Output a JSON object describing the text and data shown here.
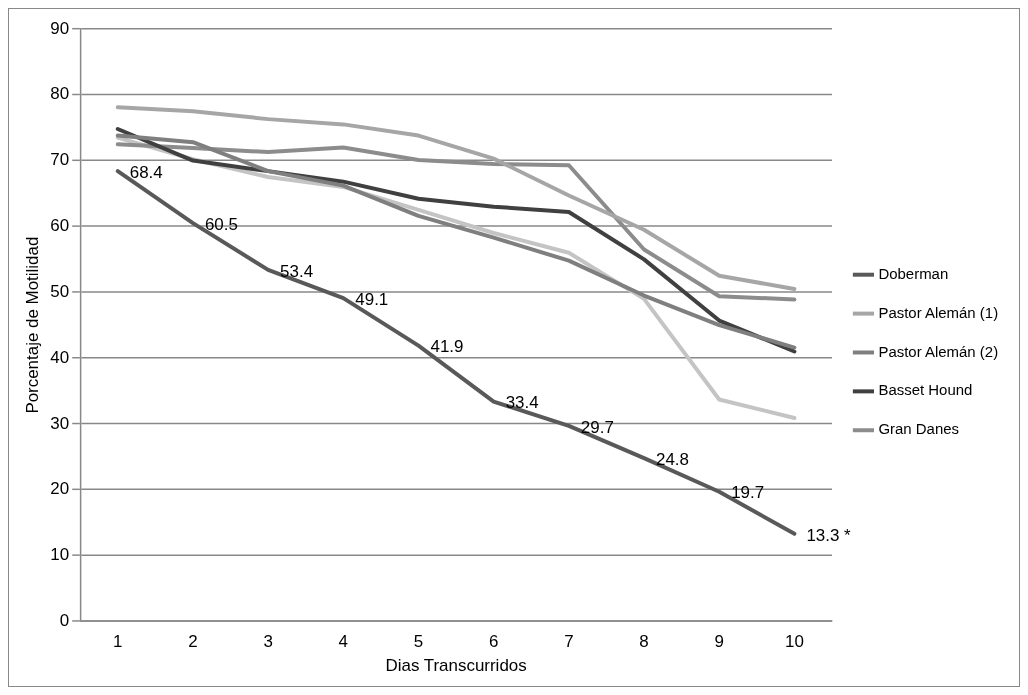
{
  "chart_data": {
    "type": "line",
    "xlabel": "Dias Transcurridos",
    "ylabel": "Porcentaje de Motilidad",
    "categories": [
      "1",
      "2",
      "3",
      "4",
      "5",
      "6",
      "7",
      "8",
      "9",
      "10"
    ],
    "series": [
      {
        "name": "Doberman",
        "color": "#595959",
        "values": [
          68.4,
          60.5,
          53.4,
          49.1,
          41.9,
          33.4,
          29.7,
          24.8,
          19.7,
          13.3
        ],
        "value_labels": [
          "68.4",
          "60.5",
          "53.4",
          "49.1",
          "41.9",
          "33.4",
          "29.7",
          "24.8",
          "19.7",
          "13.3 *"
        ]
      },
      {
        "name": "Pastor Alemán (1)",
        "color": "#a6a6a6",
        "values": [
          78.1,
          77.5,
          76.3,
          75.5,
          73.8,
          70.3,
          64.7,
          59.5,
          52.5,
          50.5
        ]
      },
      {
        "name": "Pastor Alemán (2)",
        "color": "#7f7f7f",
        "values": [
          73.8,
          72.8,
          68.4,
          66.2,
          61.6,
          58.3,
          54.8,
          49.5,
          45.0,
          41.6
        ]
      },
      {
        "name": "Basset Hound",
        "color": "#404040",
        "values": [
          74.8,
          70.0,
          68.4,
          66.8,
          64.2,
          63.0,
          62.2,
          55.0,
          45.7,
          41.0
        ]
      },
      {
        "name": "Gran Danes",
        "color": "#8c8c8c",
        "values": [
          72.5,
          71.9,
          71.3,
          72.0,
          70.1,
          69.5,
          69.3,
          56.5,
          49.4,
          48.9
        ]
      },
      {
        "color": "#c4c4c4",
        "values": [
          73.5,
          70.2,
          67.5,
          66.0,
          62.5,
          59.0,
          56.0,
          49.0,
          33.7,
          30.9
        ]
      }
    ],
    "ylim": [
      0,
      90
    ],
    "yticks": [
      0,
      10,
      20,
      30,
      40,
      50,
      60,
      70,
      80,
      90
    ],
    "grid": "y",
    "legend": "right",
    "marker": "none",
    "line_style": "solid"
  }
}
